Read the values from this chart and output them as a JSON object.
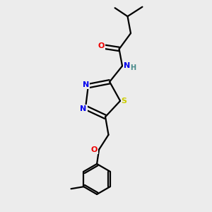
{
  "bg_color": "#ececec",
  "atom_colors": {
    "C": "#000000",
    "N": "#0000ee",
    "O": "#ee0000",
    "S": "#cccc00",
    "H": "#448888"
  },
  "figsize": [
    3.0,
    3.0
  ],
  "dpi": 100
}
